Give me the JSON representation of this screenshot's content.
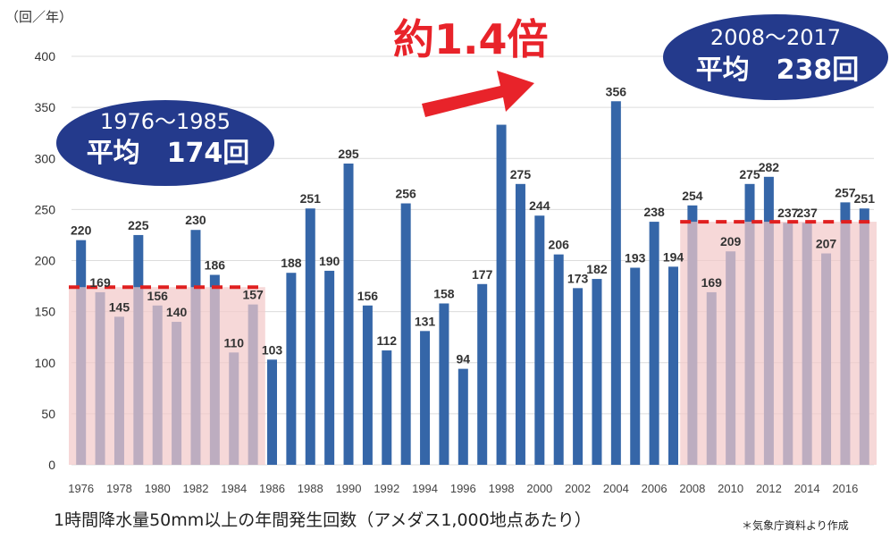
{
  "chart_data": {
    "type": "bar",
    "unit_label": "（回／年）",
    "headline": "約1.4倍",
    "caption": "1時間降水量50mm以上の年間発生回数（アメダス1,000地点あたり）",
    "source": "＊気象庁資料より作成",
    "ylim": [
      0,
      400
    ],
    "yticks": [
      0,
      50,
      100,
      150,
      200,
      250,
      300,
      350,
      400
    ],
    "grid": true,
    "bar_color": "#3566a8",
    "x": [
      1976,
      1977,
      1978,
      1979,
      1980,
      1981,
      1982,
      1983,
      1984,
      1985,
      1986,
      1987,
      1988,
      1989,
      1990,
      1991,
      1992,
      1993,
      1994,
      1995,
      1996,
      1997,
      1998,
      1999,
      2000,
      2001,
      2002,
      2003,
      2004,
      2005,
      2006,
      2007,
      2008,
      2009,
      2010,
      2011,
      2012,
      2013,
      2014,
      2015,
      2016,
      2017
    ],
    "values": [
      220,
      169,
      145,
      225,
      156,
      140,
      230,
      186,
      110,
      157,
      103,
      188,
      251,
      190,
      295,
      156,
      112,
      256,
      131,
      158,
      94,
      177,
      333,
      275,
      244,
      206,
      173,
      182,
      356,
      193,
      238,
      194,
      254,
      169,
      209,
      275,
      282,
      237,
      237,
      207,
      257,
      251
    ],
    "value_labels": [
      "220",
      "169",
      "145",
      "225",
      "156",
      "140",
      "230",
      "186",
      "110",
      "157",
      "103",
      "188",
      "251",
      "190",
      "295",
      "156",
      "112",
      "256",
      "131",
      "158",
      "94",
      "177",
      "",
      "275",
      "244",
      "206",
      "173",
      "182",
      "356",
      "193",
      "238",
      "194",
      "254",
      "169",
      "209",
      "275",
      "282",
      "237",
      "237",
      "207",
      "257",
      "251"
    ],
    "x_tick_labels": [
      "1976",
      "1978",
      "1980",
      "1982",
      "1984",
      "1986",
      "1988",
      "1990",
      "1992",
      "1994",
      "1996",
      "1998",
      "2000",
      "2002",
      "2004",
      "2006",
      "2008",
      "2010",
      "2012",
      "2014",
      "2016"
    ],
    "periods": [
      {
        "range_label": "1976～1985",
        "avg_label": "平均　174回",
        "average": 174,
        "start_year": 1976,
        "end_year": 1985,
        "avg_line_color": "#e02020",
        "shade_color": "#f2c9c9"
      },
      {
        "range_label": "2008～2017",
        "avg_label": "平均　238回",
        "average": 238,
        "start_year": 2008,
        "end_year": 2017,
        "avg_line_color": "#e02020",
        "shade_color": "#f2c9c9"
      }
    ],
    "bubble_color": "#243a8c",
    "arrow_color": "#e8232a"
  }
}
